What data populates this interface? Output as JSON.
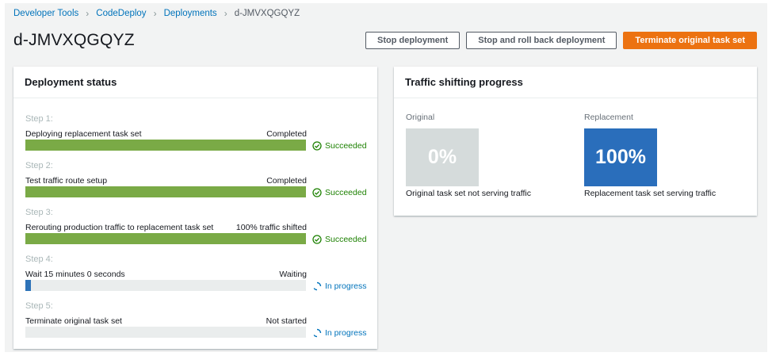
{
  "breadcrumb": [
    "Developer Tools",
    "CodeDeploy",
    "Deployments"
  ],
  "breadcrumb_current": "d-JMVXQGQYZ",
  "title": "d-JMVXQGQYZ",
  "actions": {
    "stop": "Stop deployment",
    "rollback": "Stop and roll back deployment",
    "terminate": "Terminate original task set"
  },
  "deployment_status": {
    "header": "Deployment status",
    "steps": [
      {
        "num": "Step 1:",
        "title": "Deploying replacement task set",
        "state": "Completed",
        "progress": 1.0,
        "result": "Succeeded",
        "result_type": "success"
      },
      {
        "num": "Step 2:",
        "title": "Test traffic route setup",
        "state": "Completed",
        "progress": 1.0,
        "result": "Succeeded",
        "result_type": "success"
      },
      {
        "num": "Step 3:",
        "title": "Rerouting production traffic to replacement task set",
        "state": "100% traffic shifted",
        "progress": 1.0,
        "result": "Succeeded",
        "result_type": "success"
      },
      {
        "num": "Step 4:",
        "title": "Wait 15 minutes 0 seconds",
        "state": "Waiting",
        "progress": 0.02,
        "result": "In progress",
        "result_type": "progress"
      },
      {
        "num": "Step 5:",
        "title": "Terminate original task set",
        "state": "Not started",
        "progress": 0.0,
        "result": "In progress",
        "result_type": "progress"
      }
    ]
  },
  "traffic": {
    "header": "Traffic shifting progress",
    "original": {
      "label": "Original",
      "percent": "0%",
      "caption": "Original task set not serving traffic"
    },
    "replacement": {
      "label": "Replacement",
      "percent": "100%",
      "caption": "Replacement task set serving traffic"
    }
  },
  "colors": {
    "success": "#1d8102",
    "success_bar": "#7aaa46",
    "progress_bar": "#2e73b8",
    "progress_text": "#0073bb",
    "tile_original": "#d5dbdb",
    "tile_replacement": "#2a6ebb",
    "primary": "#ec7211"
  },
  "icons": {
    "success": "check-circle-icon",
    "progress": "spinner-icon",
    "separator": "chevron-right-icon"
  }
}
